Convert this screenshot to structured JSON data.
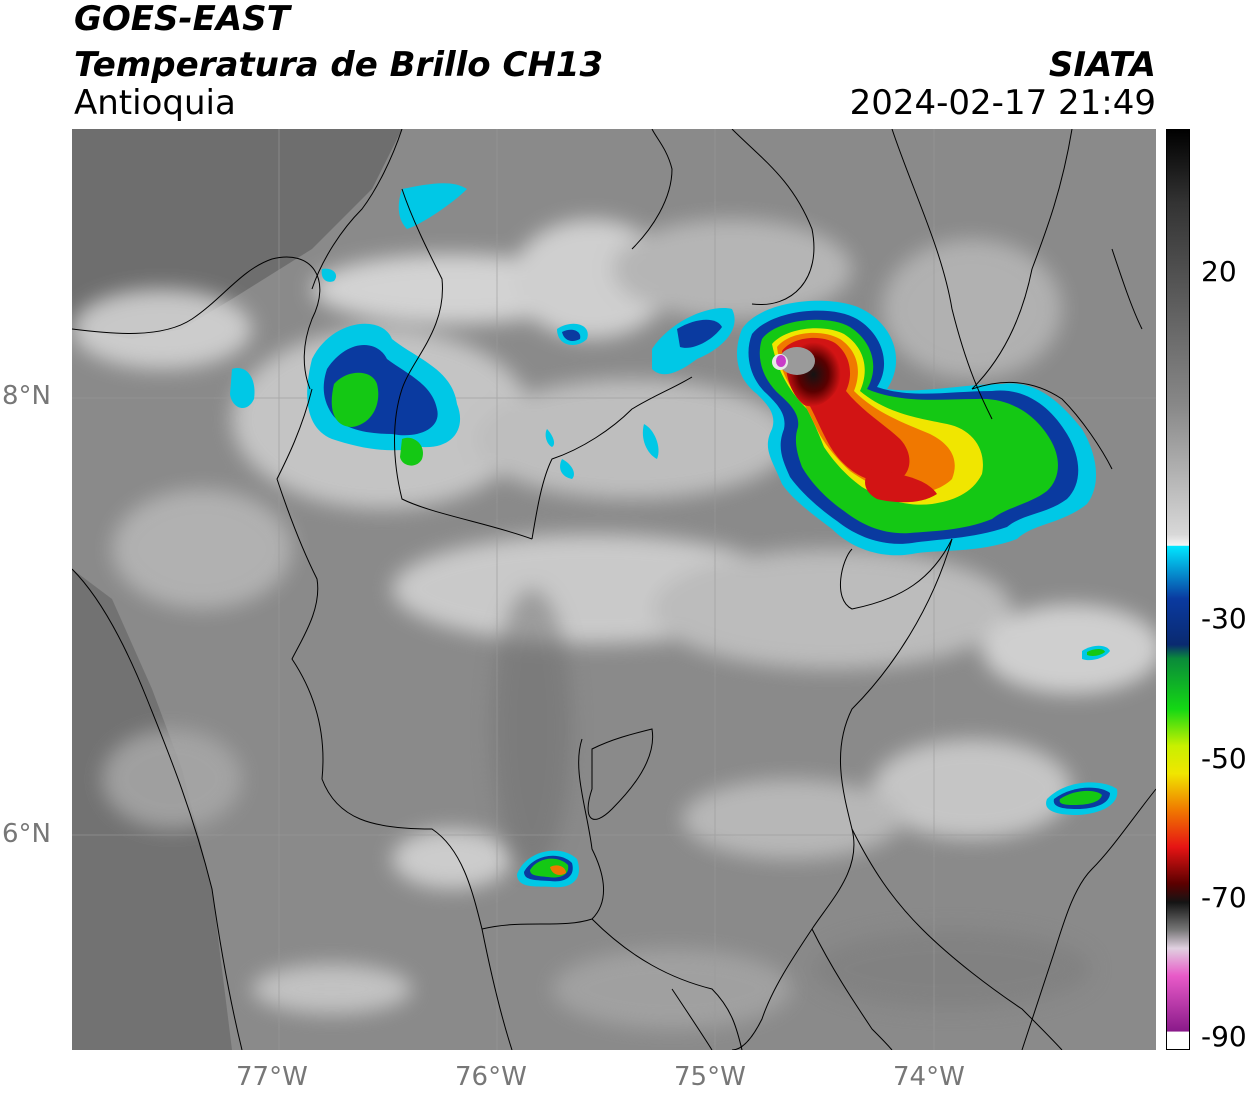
{
  "header": {
    "satellite": "GOES-EAST",
    "product": "Temperatura de Brillo CH13",
    "region": "Antioquia",
    "brand": "SIATA",
    "datetime": "2024-02-17 21:49"
  },
  "axes": {
    "x_ticks": [
      "77°W",
      "76°W",
      "75°W",
      "74°W"
    ],
    "y_ticks": [
      "8°N",
      "6°N"
    ]
  },
  "colorbar": {
    "ticks": [
      "20",
      "-30",
      "-50",
      "-70",
      "-90"
    ]
  },
  "colors": {
    "ocean_gray": "#6b6b6b",
    "land_gray": "#8a8a8a",
    "cold_cyan": "#00c8e6",
    "cold_blue": "#0a3aa0",
    "cold_green": "#14c814",
    "cold_yellow": "#f0e600",
    "cold_orange": "#f07800",
    "cold_red": "#d21414",
    "cold_darkred": "#5a0000",
    "cold_black": "#141414",
    "cold_magenta": "#c83cc8"
  }
}
